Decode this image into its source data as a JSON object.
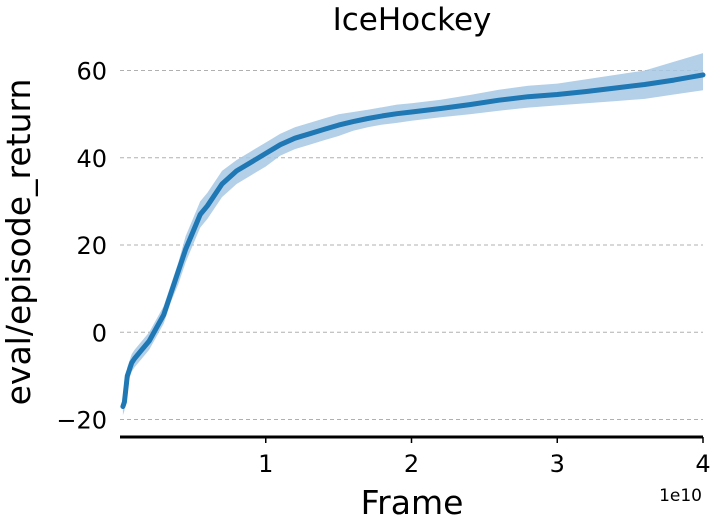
{
  "chart_data": {
    "type": "line",
    "title": "IceHockey",
    "xlabel": "Frame",
    "ylabel": "eval/episode_return",
    "x_offset_label": "1e10",
    "xlim": [
      0,
      4
    ],
    "ylim": [
      -24,
      67
    ],
    "x_ticks": [
      1,
      2,
      3,
      4
    ],
    "x_tick_labels": [
      "1",
      "2",
      "3",
      "4"
    ],
    "y_ticks": [
      -20,
      0,
      20,
      40,
      60
    ],
    "y_tick_labels": [
      "−20",
      "0",
      "20",
      "40",
      "60"
    ],
    "grid": true,
    "line_color": "#1f77b4",
    "band_color": "#a6c8e4",
    "series": [
      {
        "x": [
          0.02,
          0.03,
          0.05,
          0.08,
          0.1,
          0.15,
          0.2,
          0.25,
          0.3,
          0.35,
          0.4,
          0.45,
          0.5,
          0.55,
          0.6,
          0.7,
          0.8,
          0.9,
          1.0,
          1.1,
          1.2,
          1.3,
          1.4,
          1.5,
          1.6,
          1.7,
          1.8,
          1.9,
          2.0,
          2.2,
          2.4,
          2.6,
          2.8,
          3.0,
          3.2,
          3.4,
          3.6,
          3.8,
          4.0
        ],
        "y": [
          -17,
          -16,
          -10,
          -7,
          -6,
          -4,
          -2,
          1,
          4,
          9,
          14,
          19,
          23,
          27,
          29,
          34,
          37,
          39,
          41,
          43,
          44.5,
          45.5,
          46.5,
          47.5,
          48.3,
          49,
          49.6,
          50.1,
          50.5,
          51.3,
          52.2,
          53.2,
          54,
          54.5,
          55.2,
          56,
          56.8,
          57.8,
          59
        ],
        "lower": [
          -19,
          -18,
          -12,
          -9,
          -8,
          -6,
          -4,
          -1,
          2,
          7,
          11,
          16,
          20,
          24,
          26,
          31,
          34,
          36,
          38,
          40.5,
          42,
          43,
          44,
          45,
          46.2,
          47,
          47.6,
          48,
          48.5,
          49.3,
          50,
          50.8,
          51.5,
          52,
          52.5,
          53,
          53.5,
          54.5,
          55.5
        ],
        "upper": [
          -15,
          -14,
          -8,
          -5,
          -4,
          -2,
          0,
          3,
          6,
          11,
          16,
          22,
          26,
          30,
          32,
          37,
          39.5,
          41.5,
          43.5,
          45.5,
          47,
          48,
          49,
          50,
          50.5,
          51,
          51.6,
          52.2,
          52.5,
          53.3,
          54.4,
          55.6,
          56.5,
          57,
          58,
          59,
          60,
          62,
          64
        ]
      }
    ]
  }
}
